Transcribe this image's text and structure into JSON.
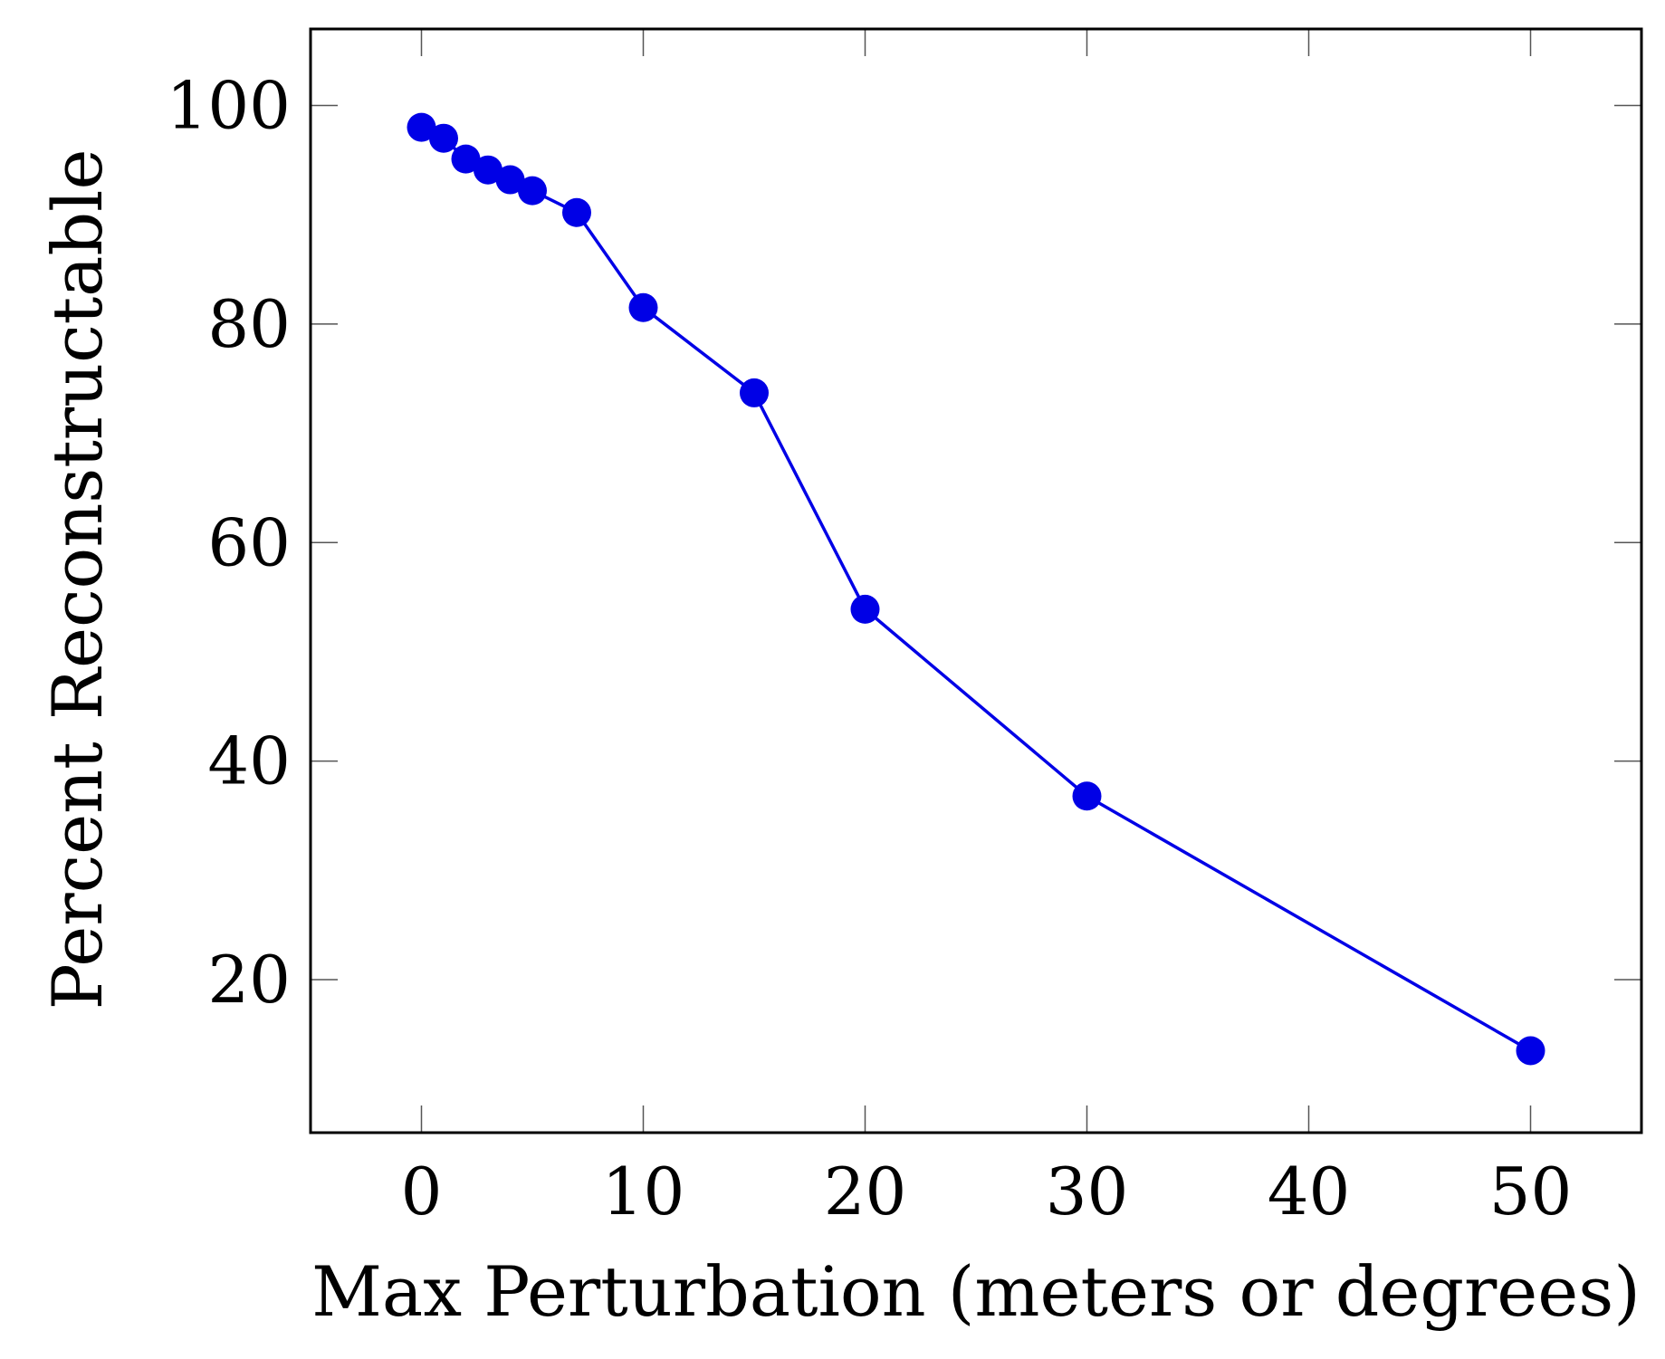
{
  "chart_data": {
    "type": "line",
    "title": "",
    "xlabel": "Max Perturbation (meters or degrees)",
    "ylabel": "Percent Reconstructable",
    "xlim": [
      -5,
      55
    ],
    "ylim": [
      6,
      107
    ],
    "xticks": [
      0,
      10,
      20,
      30,
      40,
      50
    ],
    "yticks": [
      20,
      40,
      60,
      80,
      100
    ],
    "grid": false,
    "legend": "none",
    "series": [
      {
        "name": "Percent Reconstructable",
        "color": "#0000e6",
        "marker": "circle",
        "x": [
          0,
          1,
          2,
          3,
          4,
          5,
          7,
          10,
          15,
          20,
          30,
          50
        ],
        "y": [
          98.0,
          97.0,
          95.1,
          94.1,
          93.2,
          92.2,
          90.2,
          81.5,
          73.7,
          53.9,
          36.8,
          13.5
        ]
      }
    ]
  }
}
